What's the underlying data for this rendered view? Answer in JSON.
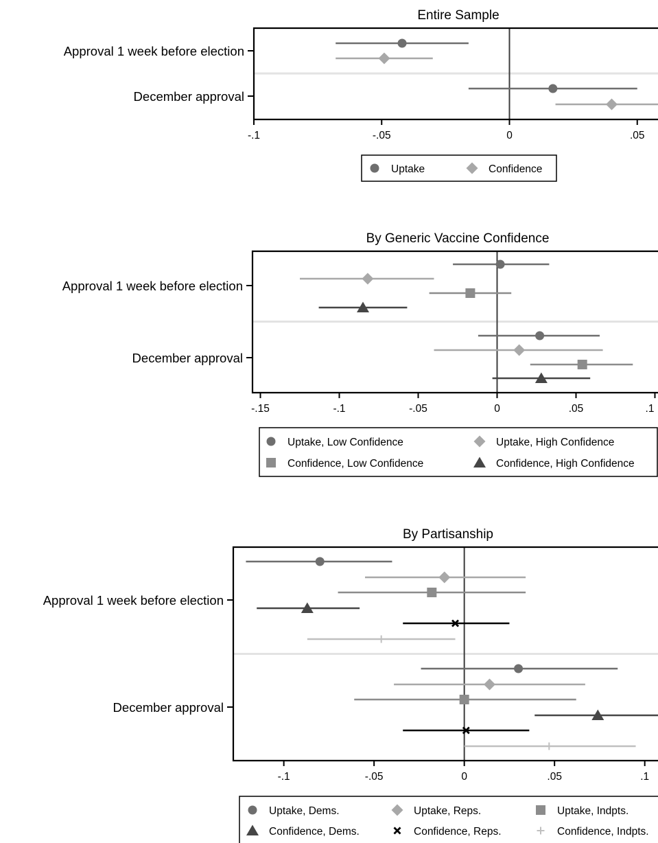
{
  "chart_data": [
    {
      "type": "coefficient-plot",
      "title": "Entire Sample",
      "xlim": [
        -0.1,
        0.06
      ],
      "xticks": [
        -0.1,
        -0.05,
        0,
        0.05
      ],
      "xticklabels": [
        "-.1",
        "-.05",
        "0",
        ".05"
      ],
      "categories": [
        "Approval 1 week before election",
        "December approval"
      ],
      "legend": {
        "placement": "bottom",
        "columns": 2
      },
      "series": [
        {
          "name": "Uptake",
          "marker": "circle",
          "color": "#6e6e6e",
          "points": [
            {
              "category": "Approval 1 week before election",
              "estimate": -0.042,
              "ci": [
                -0.068,
                -0.016
              ]
            },
            {
              "category": "December approval",
              "estimate": 0.017,
              "ci": [
                -0.016,
                0.05
              ]
            }
          ]
        },
        {
          "name": "Confidence",
          "marker": "diamond",
          "color": "#a8a8a8",
          "points": [
            {
              "category": "Approval 1 week before election",
              "estimate": -0.049,
              "ci": [
                -0.068,
                -0.03
              ]
            },
            {
              "category": "December approval",
              "estimate": 0.04,
              "ci": [
                0.018,
                0.063
              ]
            }
          ]
        }
      ]
    },
    {
      "type": "coefficient-plot",
      "title": "By Generic Vaccine Confidence",
      "xlim": [
        -0.155,
        0.105
      ],
      "xticks": [
        -0.15,
        -0.1,
        -0.05,
        0,
        0.05,
        0.1
      ],
      "xticklabels": [
        "-.15",
        "-.1",
        "-.05",
        "0",
        ".05",
        ".1"
      ],
      "categories": [
        "Approval 1 week before election",
        "December approval"
      ],
      "legend": {
        "placement": "bottom",
        "columns": 2
      },
      "series": [
        {
          "name": "Uptake, Low Confidence",
          "marker": "circle",
          "color": "#6e6e6e",
          "points": [
            {
              "category": "Approval 1 week before election",
              "estimate": 0.002,
              "ci": [
                -0.028,
                0.033
              ]
            },
            {
              "category": "December approval",
              "estimate": 0.027,
              "ci": [
                -0.012,
                0.065
              ]
            }
          ]
        },
        {
          "name": "Uptake, High Confidence",
          "marker": "diamond",
          "color": "#a8a8a8",
          "points": [
            {
              "category": "Approval 1 week before election",
              "estimate": -0.082,
              "ci": [
                -0.125,
                -0.04
              ]
            },
            {
              "category": "December approval",
              "estimate": 0.014,
              "ci": [
                -0.04,
                0.067
              ]
            }
          ]
        },
        {
          "name": "Confidence, Low Confidence",
          "marker": "square",
          "color": "#8c8c8c",
          "points": [
            {
              "category": "Approval 1 week before election",
              "estimate": -0.017,
              "ci": [
                -0.043,
                0.009
              ]
            },
            {
              "category": "December approval",
              "estimate": 0.054,
              "ci": [
                0.021,
                0.086
              ]
            }
          ]
        },
        {
          "name": "Confidence, High Confidence",
          "marker": "triangle",
          "color": "#464646",
          "points": [
            {
              "category": "Approval 1 week before election",
              "estimate": -0.085,
              "ci": [
                -0.113,
                -0.057
              ]
            },
            {
              "category": "December approval",
              "estimate": 0.028,
              "ci": [
                -0.003,
                0.059
              ]
            }
          ]
        }
      ]
    },
    {
      "type": "coefficient-plot",
      "title": "By Partisanship",
      "xlim": [
        -0.128,
        0.11
      ],
      "xticks": [
        -0.1,
        -0.05,
        0,
        0.05,
        0.1
      ],
      "xticklabels": [
        "-.1",
        "-.05",
        "0",
        ".05",
        ".1"
      ],
      "categories": [
        "Approval 1 week before election",
        "December approval"
      ],
      "legend": {
        "placement": "bottom",
        "columns": 3
      },
      "series": [
        {
          "name": "Uptake, Dems.",
          "marker": "circle",
          "color": "#6e6e6e",
          "points": [
            {
              "category": "Approval 1 week before election",
              "estimate": -0.08,
              "ci": [
                -0.121,
                -0.04
              ]
            },
            {
              "category": "December approval",
              "estimate": 0.03,
              "ci": [
                -0.024,
                0.085
              ]
            }
          ]
        },
        {
          "name": "Uptake, Reps.",
          "marker": "diamond",
          "color": "#a8a8a8",
          "points": [
            {
              "category": "Approval 1 week before election",
              "estimate": -0.011,
              "ci": [
                -0.055,
                0.034
              ]
            },
            {
              "category": "December approval",
              "estimate": 0.014,
              "ci": [
                -0.039,
                0.067
              ]
            }
          ]
        },
        {
          "name": "Uptake, Indpts.",
          "marker": "square",
          "color": "#8c8c8c",
          "points": [
            {
              "category": "Approval 1 week before election",
              "estimate": -0.018,
              "ci": [
                -0.07,
                0.034
              ]
            },
            {
              "category": "December approval",
              "estimate": 0.0,
              "ci": [
                -0.061,
                0.062
              ]
            }
          ]
        },
        {
          "name": "Confidence, Dems.",
          "marker": "triangle",
          "color": "#464646",
          "points": [
            {
              "category": "Approval 1 week before election",
              "estimate": -0.087,
              "ci": [
                -0.115,
                -0.058
              ]
            },
            {
              "category": "December approval",
              "estimate": 0.074,
              "ci": [
                0.039,
                0.108
              ]
            }
          ]
        },
        {
          "name": "Confidence, Reps.",
          "marker": "x",
          "color": "#000000",
          "points": [
            {
              "category": "Approval 1 week before election",
              "estimate": -0.005,
              "ci": [
                -0.034,
                0.025
              ]
            },
            {
              "category": "December approval",
              "estimate": 0.001,
              "ci": [
                -0.034,
                0.036
              ]
            }
          ]
        },
        {
          "name": "Confidence, Indpts.",
          "marker": "plus",
          "color": "#c0c0c0",
          "points": [
            {
              "category": "Approval 1 week before election",
              "estimate": -0.046,
              "ci": [
                -0.087,
                -0.005
              ]
            },
            {
              "category": "December approval",
              "estimate": 0.047,
              "ci": [
                0.0,
                0.095
              ]
            }
          ]
        }
      ]
    }
  ]
}
